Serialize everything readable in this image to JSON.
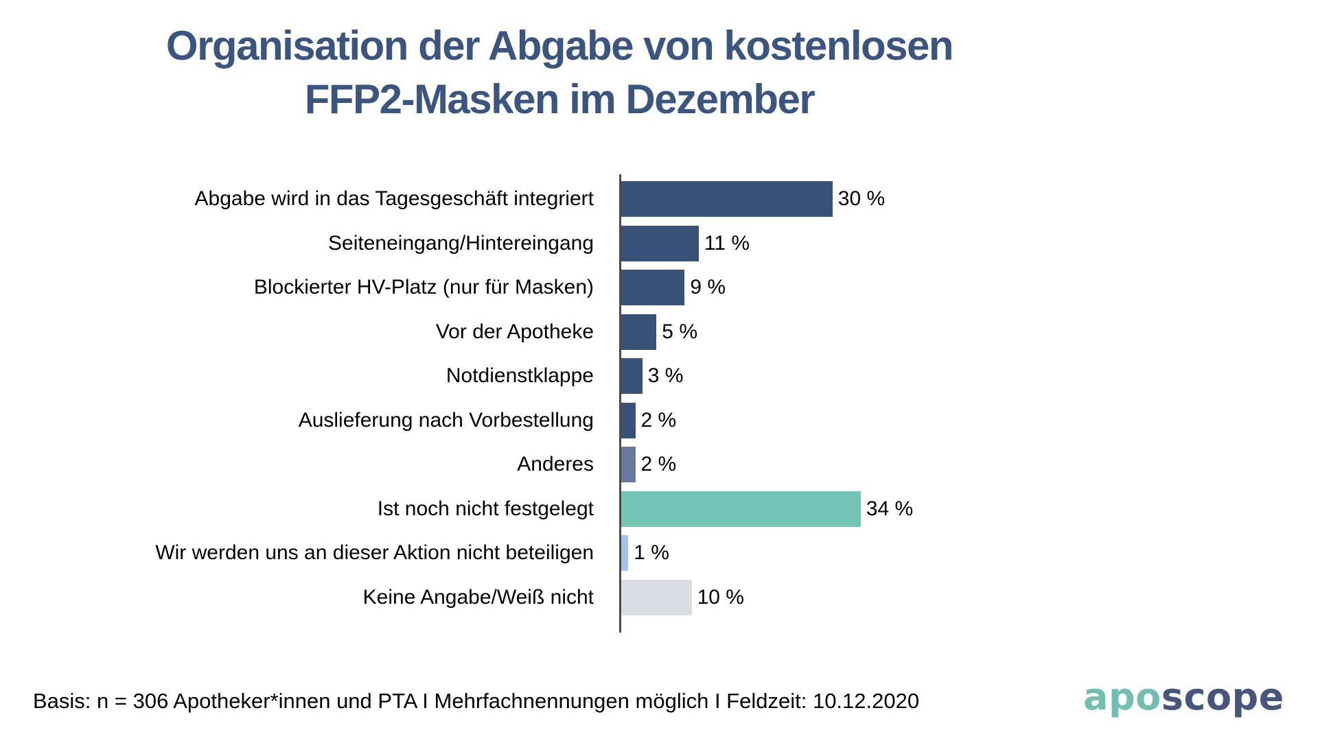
{
  "title": {
    "line1": "Organisation der Abgabe von kostenlosen",
    "line2": "FFP2-Masken im Dezember"
  },
  "chart_data": {
    "type": "bar",
    "orientation": "horizontal",
    "title": "Organisation der Abgabe von kostenlosen FFP2-Masken im Dezember",
    "unit": "%",
    "xlim": [
      0,
      40
    ],
    "grid": false,
    "legend": false,
    "categories": [
      "Abgabe wird in das Tagesgeschäft integriert",
      "Seiteneingang/Hintereingang",
      "Blockierter HV-Platz (nur für Masken)",
      "Vor der Apotheke",
      "Notdienstklappe",
      "Auslieferung nach Vorbestellung",
      "Anderes",
      "Ist noch nicht festgelegt",
      "Wir werden uns an dieser Aktion nicht beteiligen",
      "Keine Angabe/Weiß nicht"
    ],
    "values": [
      30,
      11,
      9,
      5,
      3,
      2,
      2,
      34,
      1,
      10
    ],
    "value_labels": [
      "30 %",
      "11 %",
      "9 %",
      "5 %",
      "3 %",
      "2 %",
      "2 %",
      "34 %",
      "1 %",
      "10 %"
    ],
    "bar_colors": [
      "#375178",
      "#375178",
      "#375178",
      "#375178",
      "#375178",
      "#375178",
      "#6879A0",
      "#74C5B8",
      "#A8BFF0",
      "#DBDDE5"
    ]
  },
  "footer": {
    "text": "Basis: n = 306 Apotheker*innen und PTA I Mehrfachnennungen möglich I Feldzeit: 10.12.2020"
  },
  "logo": {
    "part1": "apo",
    "part2": "scope",
    "color1": "#6FBFB3",
    "color2": "#46567D"
  },
  "colors": {
    "title": "#3A5580",
    "axis": "#4a4a4a",
    "background": "#ffffff",
    "text": "#000000"
  }
}
